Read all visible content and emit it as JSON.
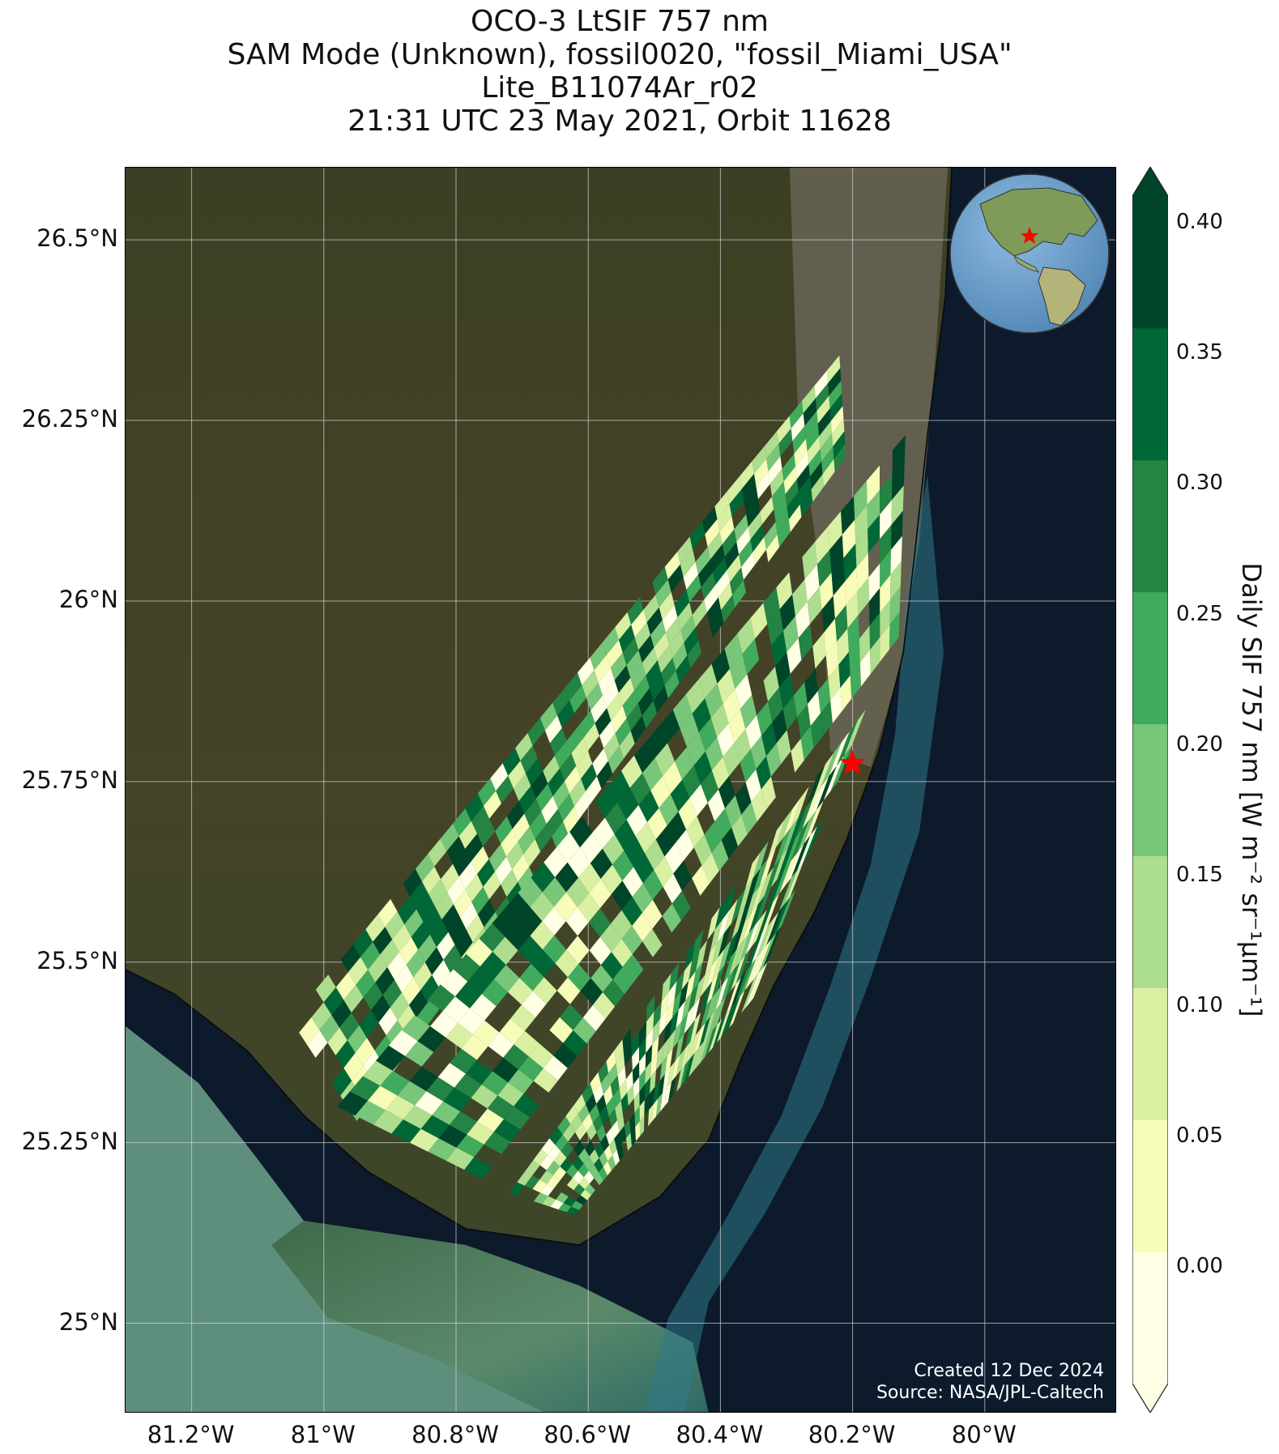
{
  "title": {
    "line1": "OCO-3 LtSIF 757 nm",
    "line2": "SAM Mode (Unknown), fossil0020, \"fossil_Miami_USA\"",
    "line3": "Lite_B11074Ar_r02",
    "line4": "21:31 UTC 23 May 2021, Orbit 11628"
  },
  "map": {
    "lat_range": [
      24.875,
      26.6
    ],
    "lon_range": [
      -81.3,
      -79.8
    ],
    "lat_ticks": [
      {
        "value": 26.5,
        "label": "26.5°N"
      },
      {
        "value": 26.25,
        "label": "26.25°N"
      },
      {
        "value": 26.0,
        "label": "26°N"
      },
      {
        "value": 25.75,
        "label": "25.75°N"
      },
      {
        "value": 25.5,
        "label": "25.5°N"
      },
      {
        "value": 25.25,
        "label": "25.25°N"
      },
      {
        "value": 25.0,
        "label": "25°N"
      }
    ],
    "lon_ticks": [
      {
        "value": -81.2,
        "label": "81.2°W"
      },
      {
        "value": -81.0,
        "label": "81°W"
      },
      {
        "value": -80.8,
        "label": "80.8°W"
      },
      {
        "value": -80.6,
        "label": "80.6°W"
      },
      {
        "value": -80.4,
        "label": "80.4°W"
      },
      {
        "value": -80.2,
        "label": "80.2°W"
      },
      {
        "value": -80.0,
        "label": "80°W"
      }
    ],
    "target": {
      "name": "fossil_Miami_USA",
      "lon": -80.2,
      "lat": 25.775,
      "marker": "red-star"
    },
    "swaths": [
      {
        "corners": [
          [
            -81.05,
            25.42
          ],
          [
            -80.22,
            26.34
          ],
          [
            -80.21,
            26.2
          ],
          [
            -80.95,
            25.28
          ]
        ]
      },
      {
        "corners": [
          [
            -80.98,
            25.3
          ],
          [
            -80.12,
            26.23
          ],
          [
            -80.13,
            25.95
          ],
          [
            -80.76,
            25.2
          ]
        ]
      },
      {
        "corners": [
          [
            -80.72,
            25.18
          ],
          [
            -80.18,
            25.85
          ],
          [
            -80.35,
            25.45
          ],
          [
            -80.62,
            25.15
          ]
        ]
      }
    ]
  },
  "colorbar": {
    "label": "Daily SIF 757 nm [W m⁻² sr⁻¹μm⁻¹]",
    "min": -0.045,
    "max": 0.41,
    "colors": [
      "#ffffe5",
      "#f7fcb9",
      "#d9f0a3",
      "#addd8e",
      "#78c679",
      "#41ab5d",
      "#238443",
      "#006837",
      "#004529"
    ],
    "ticks": [
      {
        "value": 0.0,
        "label": "0.00"
      },
      {
        "value": 0.05,
        "label": "0.05"
      },
      {
        "value": 0.1,
        "label": "0.10"
      },
      {
        "value": 0.15,
        "label": "0.15"
      },
      {
        "value": 0.2,
        "label": "0.20"
      },
      {
        "value": 0.25,
        "label": "0.25"
      },
      {
        "value": 0.3,
        "label": "0.30"
      },
      {
        "value": 0.35,
        "label": "0.35"
      },
      {
        "value": 0.4,
        "label": "0.40"
      }
    ]
  },
  "credits": {
    "line1": "Created 12 Dec 2024",
    "line2": "Source: NASA/JPL-Caltech"
  }
}
